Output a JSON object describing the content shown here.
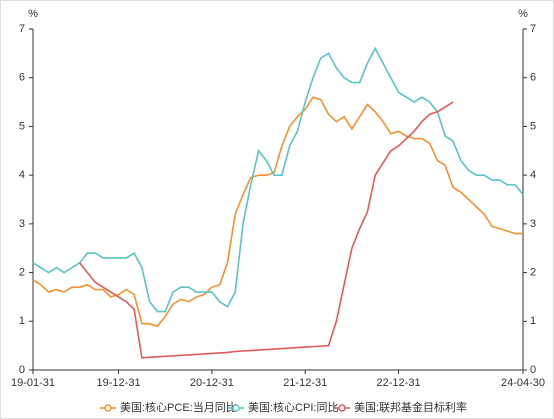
{
  "chart_data": {
    "type": "line",
    "y_unit": "%",
    "y2_unit": "%",
    "categories": [
      "19-01-31",
      null,
      null,
      null,
      null,
      null,
      null,
      null,
      null,
      null,
      null,
      "19-12-31",
      null,
      null,
      null,
      null,
      null,
      null,
      null,
      null,
      null,
      null,
      null,
      "20-12-31",
      null,
      null,
      null,
      null,
      null,
      null,
      null,
      null,
      null,
      null,
      null,
      "21-12-31",
      null,
      null,
      null,
      null,
      null,
      null,
      null,
      null,
      null,
      null,
      null,
      "22-12-31",
      null,
      null,
      null,
      null,
      null,
      null,
      null,
      null,
      null,
      null,
      null,
      null,
      null,
      null,
      null,
      "24-04-30"
    ],
    "ylim": [
      0,
      7
    ],
    "yticks": [
      0,
      1,
      2,
      3,
      4,
      5,
      6,
      7
    ],
    "y2lim": [
      0,
      7
    ],
    "y2ticks": [
      0,
      1,
      2,
      3,
      4,
      5,
      6,
      7
    ],
    "series": [
      {
        "name": "美国:核心PCE:当月同比",
        "color": "#f5922f",
        "values": [
          1.85,
          1.75,
          1.6,
          1.65,
          1.6,
          1.7,
          1.7,
          1.75,
          1.65,
          1.65,
          1.5,
          1.55,
          1.65,
          1.55,
          0.95,
          0.95,
          0.9,
          1.1,
          1.35,
          1.45,
          1.4,
          1.5,
          1.55,
          1.7,
          1.75,
          2.2,
          3.2,
          3.6,
          3.95,
          4.0,
          4.0,
          4.05,
          4.6,
          5.0,
          5.2,
          5.35,
          5.6,
          5.55,
          5.25,
          5.1,
          5.2,
          4.95,
          5.2,
          5.45,
          5.3,
          5.1,
          4.85,
          4.9,
          4.8,
          4.75,
          4.75,
          4.65,
          4.3,
          4.2,
          3.75,
          3.65,
          3.5,
          3.35,
          3.2,
          2.95,
          2.9,
          2.85,
          2.8,
          2.8
        ]
      },
      {
        "name": "美国:核心CPI:同比",
        "color": "#5bc4c4",
        "values": [
          2.2,
          2.1,
          2.0,
          2.1,
          2.0,
          2.1,
          2.2,
          2.4,
          2.4,
          2.3,
          2.3,
          2.3,
          2.3,
          2.4,
          2.1,
          1.4,
          1.2,
          1.2,
          1.6,
          1.7,
          1.7,
          1.6,
          1.6,
          1.6,
          1.4,
          1.3,
          1.6,
          3.0,
          3.8,
          4.5,
          4.3,
          4.0,
          4.0,
          4.6,
          4.9,
          5.5,
          6.0,
          6.4,
          6.5,
          6.2,
          6.0,
          5.9,
          5.9,
          6.3,
          6.6,
          6.3,
          6.0,
          5.7,
          5.6,
          5.5,
          5.6,
          5.5,
          5.3,
          4.8,
          4.7,
          4.3,
          4.1,
          4.0,
          4.0,
          3.9,
          3.9,
          3.8,
          3.8,
          3.6
        ]
      },
      {
        "name": "美国:联邦基金目标利率",
        "color": "#e05a5a",
        "values": [
          null,
          null,
          null,
          null,
          null,
          null,
          2.2,
          2.0,
          1.8,
          1.7,
          1.6,
          1.5,
          1.4,
          1.25,
          0.25,
          0.26,
          0.27,
          0.28,
          0.29,
          0.3,
          0.31,
          0.32,
          0.33,
          0.34,
          0.35,
          0.36,
          0.38,
          0.39,
          0.4,
          0.41,
          0.42,
          0.43,
          0.44,
          0.45,
          0.46,
          0.47,
          0.48,
          0.49,
          0.5,
          1.0,
          1.75,
          2.5,
          2.9,
          3.25,
          4.0,
          4.25,
          4.5,
          4.6,
          4.75,
          4.9,
          5.1,
          5.25,
          5.3,
          5.4,
          5.5,
          null,
          null,
          null,
          null,
          null,
          null,
          null,
          null,
          null
        ]
      }
    ]
  }
}
